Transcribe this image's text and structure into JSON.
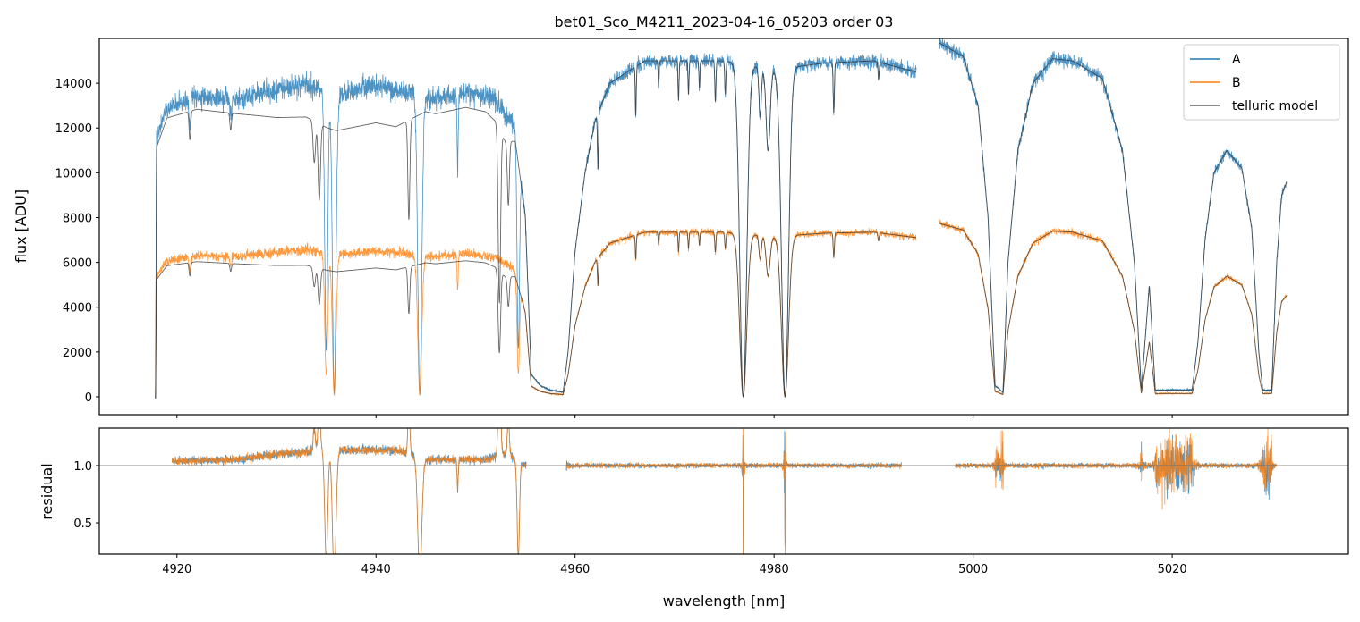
{
  "chart_data": {
    "type": "line",
    "title": "bet01_Sco_M4211_2023-04-16_05203  order 03",
    "xlabel": "wavelength [nm]",
    "panels": [
      {
        "name": "flux",
        "ylabel": "flux [ADU]",
        "ylim": [
          -800,
          16000
        ],
        "yticks": [
          0,
          2000,
          4000,
          6000,
          8000,
          10000,
          12000,
          14000
        ]
      },
      {
        "name": "residual",
        "ylabel": "residual",
        "ylim": [
          0.227,
          1.328
        ],
        "yticks": [
          0.5,
          1.0
        ],
        "reference_line": 1.0
      }
    ],
    "xlim": [
      4912.2,
      5037.7
    ],
    "xticks": [
      4920,
      4940,
      4960,
      4980,
      5000,
      5020
    ],
    "legend": {
      "placement": "top-right",
      "entries": [
        {
          "label": "A",
          "color": "#1f77b4"
        },
        {
          "label": "B",
          "color": "#ff7f0e"
        },
        {
          "label": "telluric model",
          "color": "#666666"
        }
      ]
    },
    "data_segments": [
      [
        4917.85,
        4994.3
      ],
      [
        4996.55,
        5031.5
      ]
    ],
    "residual_segments": [
      [
        4919.5,
        4955.1
      ],
      [
        4959.1,
        4992.8
      ],
      [
        4998.2,
        5030.5
      ]
    ],
    "envelope_A": [
      [
        4917.85,
        -100
      ],
      [
        4917.95,
        11500
      ],
      [
        4919,
        12900
      ],
      [
        4922,
        13400
      ],
      [
        4926,
        13300
      ],
      [
        4930,
        13700
      ],
      [
        4933,
        14000
      ],
      [
        4936,
        13500
      ],
      [
        4940,
        13900
      ],
      [
        4943,
        13600
      ],
      [
        4946,
        13300
      ],
      [
        4949,
        13600
      ],
      [
        4952,
        13300
      ],
      [
        4954,
        12000
      ],
      [
        4955,
        8000
      ],
      [
        4955.6,
        1000
      ],
      [
        4956.5,
        500
      ],
      [
        4957.5,
        300
      ],
      [
        4958.8,
        200
      ],
      [
        4959.3,
        2000
      ],
      [
        4960,
        6500
      ],
      [
        4961,
        10000
      ],
      [
        4962,
        12300
      ],
      [
        4963.5,
        14000
      ],
      [
        4967,
        15000
      ],
      [
        4975,
        15000
      ],
      [
        4980,
        14600
      ],
      [
        4985,
        14900
      ],
      [
        4990,
        15000
      ],
      [
        4994.3,
        14500
      ],
      [
        4996.6,
        15800
      ],
      [
        4999,
        15200
      ],
      [
        5000.5,
        13000
      ],
      [
        5001.5,
        8000
      ],
      [
        5002.2,
        500
      ],
      [
        5003,
        200
      ],
      [
        5003.5,
        6000
      ],
      [
        5004.5,
        11000
      ],
      [
        5006,
        14000
      ],
      [
        5008,
        15100
      ],
      [
        5010,
        15000
      ],
      [
        5013,
        14200
      ],
      [
        5015,
        11000
      ],
      [
        5016.2,
        6000
      ],
      [
        5016.9,
        300
      ],
      [
        5017.7,
        5000
      ],
      [
        5018.3,
        300
      ],
      [
        5022,
        300
      ],
      [
        5022.6,
        2500
      ],
      [
        5023.3,
        7000
      ],
      [
        5024.2,
        10000
      ],
      [
        5025.5,
        11000
      ],
      [
        5027,
        10200
      ],
      [
        5028,
        7500
      ],
      [
        5028.7,
        2000
      ],
      [
        5029.1,
        300
      ],
      [
        5030,
        300
      ],
      [
        5030.5,
        6000
      ],
      [
        5031,
        9000
      ],
      [
        5031.5,
        9600
      ]
    ],
    "model_ratio": [
      [
        4917,
        0.97
      ],
      [
        4921,
        0.96
      ],
      [
        4926,
        0.95
      ],
      [
        4930,
        0.91
      ],
      [
        4935,
        0.88
      ],
      [
        4942,
        0.88
      ],
      [
        4945,
        0.95
      ],
      [
        4951,
        0.95
      ],
      [
        4953,
        0.9
      ],
      [
        4955,
        1.0
      ],
      [
        5032,
        1.0
      ]
    ],
    "b_scale": [
      [
        4917,
        0.47
      ],
      [
        4955,
        0.47
      ],
      [
        4960,
        0.49
      ],
      [
        5028,
        0.49
      ],
      [
        5031.5,
        0.47
      ]
    ],
    "lines_common": [
      [
        4921.3,
        0.1,
        0.08
      ],
      [
        4925.4,
        0.06,
        0.08
      ],
      [
        4962.3,
        0.2,
        0.05
      ],
      [
        4966.1,
        0.15,
        0.05
      ],
      [
        4968.4,
        0.08,
        0.05
      ],
      [
        4970.4,
        0.12,
        0.05
      ],
      [
        4971.4,
        0.1,
        0.05
      ],
      [
        4972.5,
        0.08,
        0.05
      ],
      [
        4974.1,
        0.12,
        0.06
      ],
      [
        4975.1,
        0.1,
        0.06
      ],
      [
        4976.9,
        1.0,
        0.35
      ],
      [
        4978.6,
        0.15,
        0.12
      ],
      [
        4979.4,
        0.25,
        0.2
      ],
      [
        4981.1,
        1.0,
        0.35
      ],
      [
        4986.0,
        0.15,
        0.06
      ],
      [
        4990.5,
        0.05,
        0.06
      ]
    ],
    "lines_data_only": [
      [
        4935.0,
        0.85,
        0.15
      ],
      [
        4935.8,
        0.99,
        0.18
      ],
      [
        4944.4,
        0.99,
        0.2
      ],
      [
        4948.2,
        0.25,
        0.06
      ],
      [
        4954.3,
        0.8,
        0.12
      ]
    ],
    "lines_model_only": [
      [
        4933.8,
        0.15,
        0.12
      ],
      [
        4934.3,
        0.28,
        0.12
      ],
      [
        4943.3,
        0.36,
        0.1
      ],
      [
        4952.4,
        0.65,
        0.12
      ],
      [
        4953.3,
        0.25,
        0.1
      ]
    ],
    "noise_fraction": {
      "region1": 0.035,
      "default": 0.02
    }
  }
}
